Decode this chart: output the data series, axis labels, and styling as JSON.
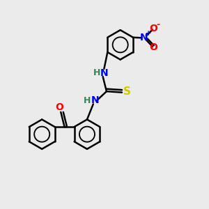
{
  "bg_color": "#ebebeb",
  "bond_color": "#000000",
  "N_color": "#0000ff",
  "O_color": "#ff0000",
  "S_color": "#cccc00",
  "NH_color": "#2e8b57",
  "lw": 1.8,
  "ring_r": 0.72,
  "fig_width": 3.0,
  "fig_height": 3.0,
  "dpi": 100,
  "xlim": [
    0,
    10
  ],
  "ylim": [
    0,
    10
  ],
  "NO2_N_color": "#0000ff",
  "NO2_O_color": "#ff0000"
}
